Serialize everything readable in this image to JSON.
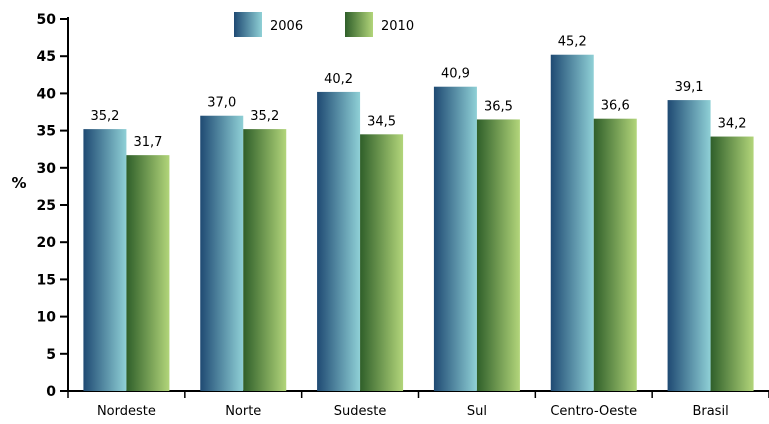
{
  "chart_data": {
    "type": "bar",
    "title": "",
    "xlabel": "",
    "ylabel": "%",
    "ylim": [
      0,
      50
    ],
    "yticks": [
      0,
      5,
      10,
      15,
      20,
      25,
      30,
      35,
      40,
      45,
      50
    ],
    "grid": false,
    "legend_position": "top-center",
    "categories": [
      "Nordeste",
      "Norte",
      "Sudeste",
      "Sul",
      "Centro-Oeste",
      "Brasil"
    ],
    "series": [
      {
        "name": "2006",
        "values": [
          35.2,
          37.0,
          40.2,
          40.9,
          45.2,
          39.1
        ],
        "labels": [
          "35,2",
          "37,0",
          "40,2",
          "40,9",
          "45,2",
          "39,1"
        ],
        "color_dark": "#1f4a73",
        "color_light": "#8fd0d6"
      },
      {
        "name": "2010",
        "values": [
          31.7,
          35.2,
          34.5,
          36.5,
          36.6,
          34.2
        ],
        "labels": [
          "31,7",
          "35,2",
          "34,5",
          "36,5",
          "36,6",
          "34,2"
        ],
        "color_dark": "#2f5f2a",
        "color_light": "#b2d57a"
      }
    ]
  }
}
